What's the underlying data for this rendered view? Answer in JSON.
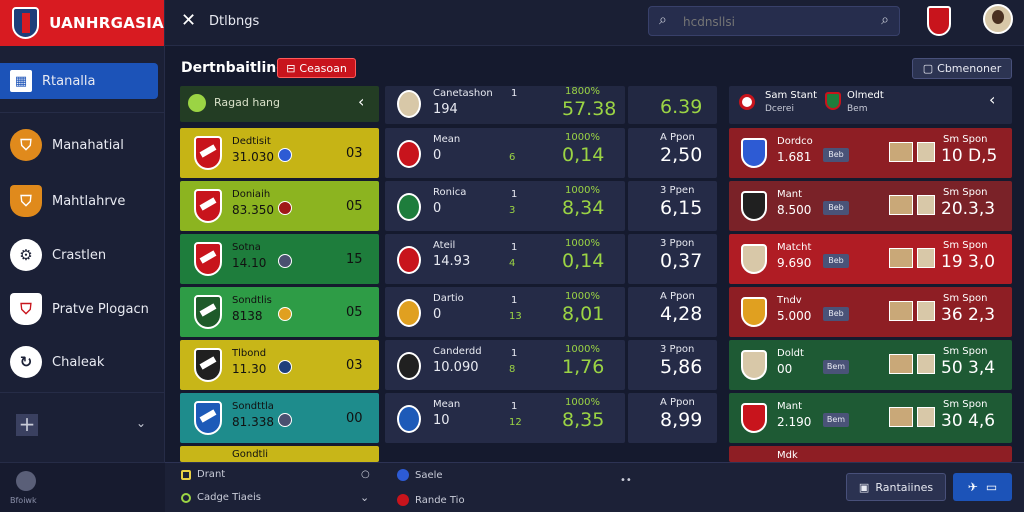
{
  "app": {
    "brand": "UANHRGASIA",
    "tab_title": "Dtlbngs"
  },
  "search": {
    "placeholder": "hcdnsllsi"
  },
  "sidebar": {
    "items": [
      {
        "label": "Rtanalla"
      },
      {
        "label": "Manahatial"
      },
      {
        "label": "Mahtlahrve"
      },
      {
        "label": "Crastlen"
      },
      {
        "label": "Pratve Plogacn"
      },
      {
        "label": "Chaleak"
      }
    ],
    "bottom_label": "Bfoiwk"
  },
  "header": {
    "title": "Dertnbaitling",
    "tag": "Ceasoan",
    "right_button": "Cbmenoner"
  },
  "left_col": {
    "header": "Ragad hang",
    "teams": [
      {
        "name": "Dedtisit",
        "value": "31.030",
        "num": "03",
        "color": "#c6b415",
        "crest": "#c8141c",
        "dot": "#2d5bd4"
      },
      {
        "name": "Doniaih",
        "value": "83.350",
        "num": "05",
        "color": "#8cb420",
        "crest": "#c8141c",
        "dot": "#a01818"
      },
      {
        "name": "Sotna",
        "value": "14.10",
        "num": "15",
        "color": "#1e7d3c",
        "crest": "#c8141c",
        "dot": "#4a5070"
      },
      {
        "name": "Sondtlis",
        "value": "8138",
        "num": "05",
        "color": "#2e9c46",
        "crest": "#1e5a2a",
        "dot": "#e0a020"
      },
      {
        "name": "Tlbond",
        "value": "11.30",
        "num": "03",
        "color": "#c8b618",
        "crest": "#202020",
        "dot": "#1d3e7a"
      },
      {
        "name": "Sondttla",
        "value": "81.338",
        "num": "00",
        "color": "#1e8c8c",
        "crest": "#1d5ab8",
        "dot": "#4a5070"
      },
      {
        "name": "Gondtli",
        "value": "",
        "num": "",
        "color": "#c8b618",
        "crest": "#c8141c",
        "dot": "#2d5bd4"
      }
    ]
  },
  "mid_col": {
    "header": {
      "name": "Canetashon",
      "sub": "194",
      "cnt": "1",
      "pct": "1800%",
      "big": "57.38",
      "olbl": "",
      "oval": "6.39"
    },
    "rows": [
      {
        "name": "Mean",
        "sub": "0",
        "cnt": "",
        "cnt2": "6",
        "pct": "1000%",
        "big": "0,14",
        "olbl": "A Ppon",
        "oval": "2,50",
        "crest": "#c8141c"
      },
      {
        "name": "Ronica",
        "sub": "0",
        "cnt": "1",
        "cnt2": "3",
        "pct": "1000%",
        "big": "8,34",
        "olbl": "3 Ppen",
        "oval": "6,15",
        "crest": "#1e7d3c"
      },
      {
        "name": "Ateil",
        "sub": "14.93",
        "cnt": "1",
        "cnt2": "4",
        "pct": "1000%",
        "big": "0,14",
        "olbl": "3 Ppon",
        "oval": "0,37",
        "crest": "#c8141c"
      },
      {
        "name": "Dartio",
        "sub": "0",
        "cnt": "1",
        "cnt2": "13",
        "pct": "1000%",
        "big": "8,01",
        "olbl": "A Ppon",
        "oval": "4,28",
        "crest": "#e0a020"
      },
      {
        "name": "Canderdd",
        "sub": "10.090",
        "cnt": "1",
        "cnt2": "8",
        "pct": "1000%",
        "big": "1,76",
        "olbl": "3 Ppon",
        "oval": "5,86",
        "crest": "#202020"
      },
      {
        "name": "Mean",
        "sub": "10",
        "cnt": "1",
        "cnt2": "12",
        "pct": "1000%",
        "big": "8,35",
        "olbl": "A Ppon",
        "oval": "8,99",
        "crest": "#1d5ab8"
      }
    ]
  },
  "right_col": {
    "header": {
      "name1": "Sam Stant",
      "sub1": "Dcerei",
      "name2": "Olmedt",
      "sub2": "Bem"
    },
    "rows": [
      {
        "name": "Dordco",
        "value": "1.681",
        "chip": "Beb",
        "lbl": "Sm Spon",
        "big": "10 D,5",
        "color": "#8e1e24",
        "crest": "#2d5bd4"
      },
      {
        "name": "Mant",
        "value": "8.500",
        "chip": "Beb",
        "lbl": "Sm Spon",
        "big": "20.3,3",
        "color": "#7a2228",
        "crest": "#202020"
      },
      {
        "name": "Matcht",
        "value": "9.690",
        "chip": "Beb",
        "lbl": "Sm Spon",
        "big": "19 3,0",
        "color": "#b01c24",
        "crest": "#d8c8a8"
      },
      {
        "name": "Tndv",
        "value": "5.000",
        "chip": "Beb",
        "lbl": "Sm Spon",
        "big": "36 2,3",
        "color": "#8e1e24",
        "crest": "#e0a020"
      },
      {
        "name": "Doldt",
        "value": "00",
        "chip": "Bem",
        "lbl": "Sm Spon",
        "big": "50 3,4",
        "color": "#1e5a34",
        "crest": "#d8c8a8"
      },
      {
        "name": "Mant",
        "value": "2.190",
        "chip": "Bem",
        "lbl": "Sm Spon",
        "big": "30 4,6",
        "color": "#1e5a34",
        "crest": "#c8141c"
      },
      {
        "name": "Mdk",
        "value": "",
        "chip": "",
        "lbl": "",
        "big": "",
        "color": "#8e1e24",
        "crest": "#d8c8a8"
      }
    ]
  },
  "bottombar": {
    "left1": "Drant",
    "left2": "Cadge Tiaeis",
    "mid1": "Saele",
    "mid2": "Rande Tio",
    "btn1": "Rantaiines"
  }
}
